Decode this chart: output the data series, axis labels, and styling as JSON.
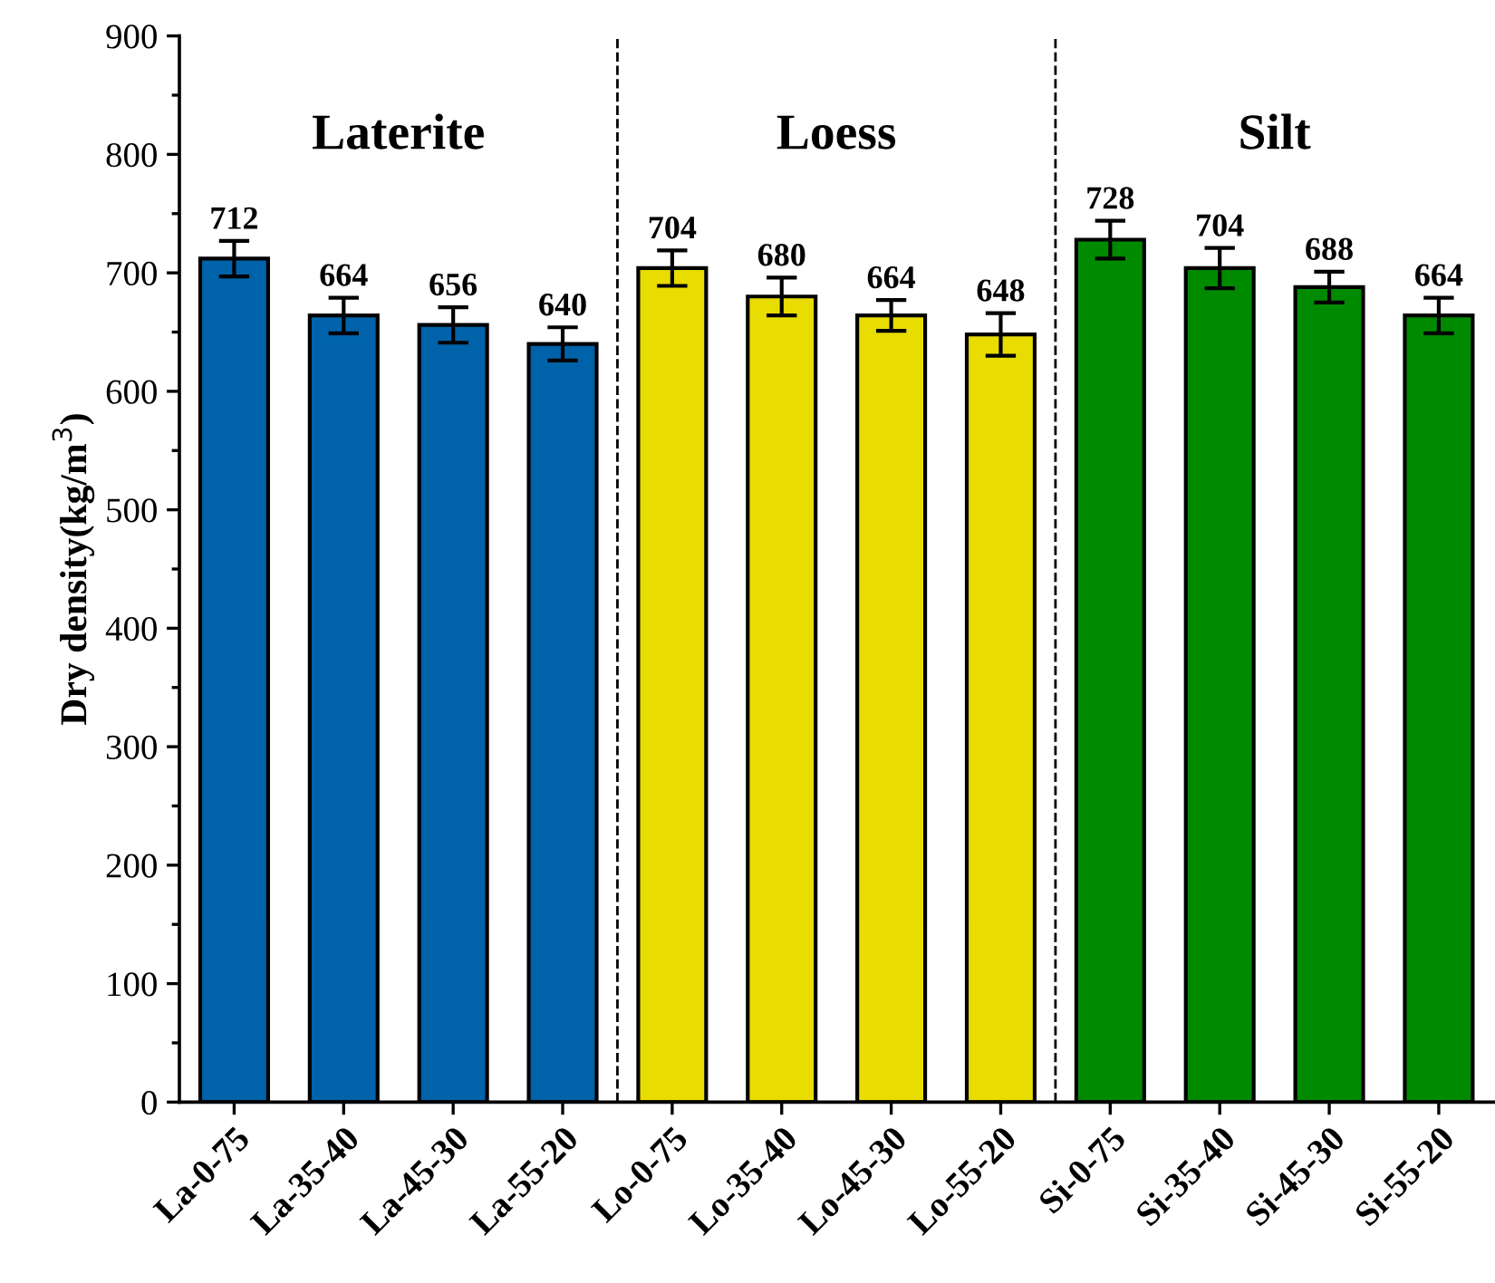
{
  "chart_data": {
    "type": "bar",
    "ylabel": "Dry density(kg/m$^{3}$)",
    "categories": [
      "La-0-75",
      "La-35-40",
      "La-45-30",
      "La-55-20",
      "Lo-0-75",
      "Lo-35-40",
      "Lo-45-30",
      "Lo-55-20",
      "Si-0-75",
      "Si-35-40",
      "Si-45-30",
      "Si-55-20"
    ],
    "values": [
      712,
      664,
      656,
      640,
      704,
      680,
      664,
      648,
      728,
      704,
      688,
      664
    ],
    "errors": [
      15,
      15,
      15,
      14,
      15,
      16,
      13,
      18,
      16,
      17,
      13,
      15
    ],
    "colors": [
      "#0062a8",
      "#0062a8",
      "#0062a8",
      "#0062a8",
      "#e8dc00",
      "#e8dc00",
      "#e8dc00",
      "#e8dc00",
      "#008a00",
      "#008a00",
      "#008a00",
      "#008a00"
    ],
    "data_labels": true,
    "ylim": [
      0,
      900
    ],
    "yticks": [
      0,
      100,
      200,
      300,
      400,
      500,
      600,
      700,
      800,
      900
    ],
    "annotations": [
      "Laterite",
      "Loess",
      "Silt"
    ],
    "grid": false
  }
}
